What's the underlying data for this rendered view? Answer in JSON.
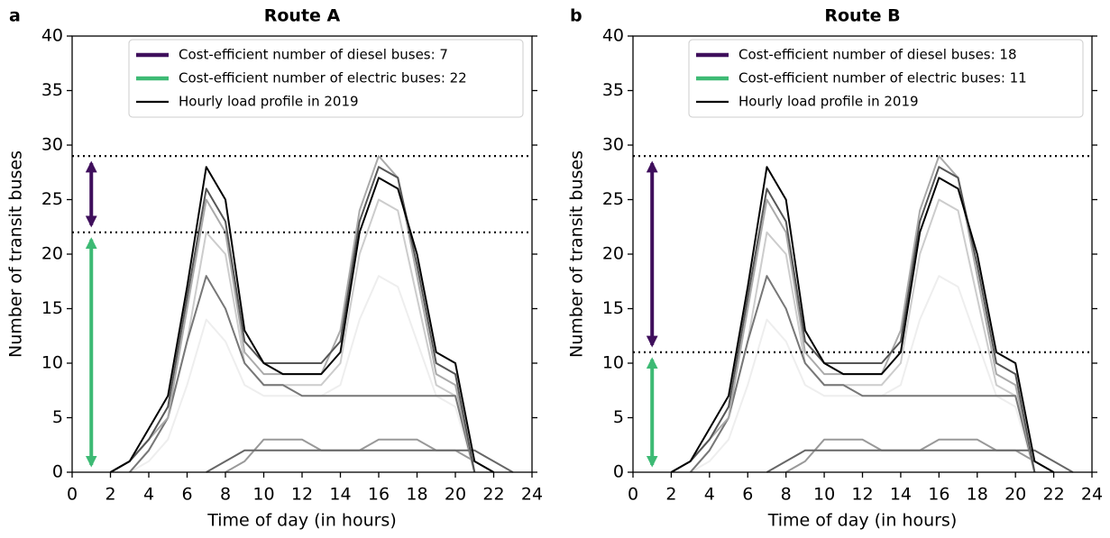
{
  "chart_data": [
    {
      "type": "line",
      "panel": "a",
      "title": "Route A",
      "x_label": "Time of day (in hours)",
      "y_label": "Number of transit buses",
      "xlim": [
        0,
        24
      ],
      "xticks": [
        0,
        2,
        4,
        6,
        8,
        10,
        12,
        14,
        16,
        18,
        20,
        22,
        24
      ],
      "ylim": [
        0,
        40
      ],
      "yticks": [
        0,
        5,
        10,
        15,
        20,
        25,
        30,
        35,
        40
      ],
      "diesel": {
        "name": "Cost-efficient number of diesel buses: 7",
        "color": "#3f0f5c",
        "range": [
          22,
          29
        ]
      },
      "electric": {
        "name": "Cost-efficient number of electric buses: 22",
        "color": "#3dba74",
        "range": [
          0,
          22
        ]
      },
      "load_profile_name": "Hourly load profile in 2019",
      "load_profile_color": "#000000",
      "x": [
        0,
        1,
        2,
        3,
        4,
        5,
        6,
        7,
        8,
        9,
        10,
        11,
        12,
        13,
        14,
        15,
        16,
        17,
        18,
        19,
        20,
        21,
        22,
        23
      ],
      "profiles": [
        {
          "color": "#eeeeee",
          "values": [
            null,
            null,
            null,
            0,
            1,
            3,
            8,
            14,
            12,
            8,
            7,
            7,
            7,
            7,
            8,
            14,
            18,
            17,
            12,
            7,
            6,
            0,
            null,
            null
          ]
        },
        {
          "color": "#cccccc",
          "values": [
            null,
            null,
            null,
            0,
            2,
            5,
            12,
            22,
            20,
            10,
            8,
            8,
            8,
            8,
            10,
            20,
            25,
            24,
            16,
            8,
            7,
            0,
            null,
            null
          ]
        },
        {
          "color": "#777777",
          "values": [
            null,
            null,
            null,
            0,
            2,
            5,
            12,
            18,
            15,
            10,
            8,
            8,
            7,
            7,
            7,
            7,
            7,
            7,
            7,
            7,
            7,
            0,
            null,
            null
          ]
        },
        {
          "color": "#999999",
          "values": [
            null,
            null,
            null,
            null,
            null,
            null,
            null,
            null,
            0,
            1,
            3,
            3,
            3,
            2,
            2,
            2,
            3,
            3,
            3,
            2,
            2,
            1,
            0,
            null
          ]
        },
        {
          "color": "#666666",
          "values": [
            null,
            null,
            null,
            null,
            null,
            null,
            null,
            0,
            1,
            2,
            2,
            2,
            2,
            2,
            2,
            2,
            2,
            2,
            2,
            2,
            2,
            2,
            1,
            0
          ]
        },
        {
          "color": "#aaaaaa",
          "values": [
            null,
            null,
            0,
            1,
            3,
            5,
            15,
            25,
            22,
            11,
            9,
            9,
            9,
            9,
            13,
            24,
            29,
            27,
            18,
            9,
            8,
            0,
            null,
            null
          ]
        },
        {
          "color": "#555555",
          "values": [
            null,
            null,
            0,
            1,
            3,
            6,
            16,
            26,
            23,
            12,
            10,
            10,
            10,
            10,
            12,
            23,
            28,
            27,
            19,
            10,
            9,
            0,
            null,
            null
          ]
        },
        {
          "color": "#000000",
          "values": [
            null,
            null,
            0,
            1,
            4,
            7,
            17,
            28,
            25,
            13,
            10,
            9,
            9,
            9,
            11,
            22,
            27,
            26,
            20,
            11,
            10,
            1,
            0,
            null
          ]
        }
      ]
    },
    {
      "type": "line",
      "panel": "b",
      "title": "Route B",
      "x_label": "Time of day (in hours)",
      "y_label": "Number of transit buses",
      "xlim": [
        0,
        24
      ],
      "xticks": [
        0,
        2,
        4,
        6,
        8,
        10,
        12,
        14,
        16,
        18,
        20,
        22,
        24
      ],
      "ylim": [
        0,
        40
      ],
      "yticks": [
        0,
        5,
        10,
        15,
        20,
        25,
        30,
        35,
        40
      ],
      "diesel": {
        "name": "Cost-efficient number of diesel buses: 18",
        "color": "#3f0f5c",
        "range": [
          11,
          29
        ]
      },
      "electric": {
        "name": "Cost-efficient number of electric buses: 11",
        "color": "#3dba74",
        "range": [
          0,
          11
        ]
      },
      "load_profile_name": "Hourly load profile in 2019",
      "load_profile_color": "#000000",
      "x": [
        0,
        1,
        2,
        3,
        4,
        5,
        6,
        7,
        8,
        9,
        10,
        11,
        12,
        13,
        14,
        15,
        16,
        17,
        18,
        19,
        20,
        21,
        22,
        23
      ],
      "profiles": [
        {
          "color": "#eeeeee",
          "values": [
            null,
            null,
            null,
            0,
            1,
            3,
            8,
            14,
            12,
            8,
            7,
            7,
            7,
            7,
            8,
            14,
            18,
            17,
            12,
            7,
            6,
            0,
            null,
            null
          ]
        },
        {
          "color": "#cccccc",
          "values": [
            null,
            null,
            null,
            0,
            2,
            5,
            12,
            22,
            20,
            10,
            8,
            8,
            8,
            8,
            10,
            20,
            25,
            24,
            16,
            8,
            7,
            0,
            null,
            null
          ]
        },
        {
          "color": "#777777",
          "values": [
            null,
            null,
            null,
            0,
            2,
            5,
            12,
            18,
            15,
            10,
            8,
            8,
            7,
            7,
            7,
            7,
            7,
            7,
            7,
            7,
            7,
            0,
            null,
            null
          ]
        },
        {
          "color": "#999999",
          "values": [
            null,
            null,
            null,
            null,
            null,
            null,
            null,
            null,
            0,
            1,
            3,
            3,
            3,
            2,
            2,
            2,
            3,
            3,
            3,
            2,
            2,
            1,
            0,
            null
          ]
        },
        {
          "color": "#666666",
          "values": [
            null,
            null,
            null,
            null,
            null,
            null,
            null,
            0,
            1,
            2,
            2,
            2,
            2,
            2,
            2,
            2,
            2,
            2,
            2,
            2,
            2,
            2,
            1,
            0
          ]
        },
        {
          "color": "#aaaaaa",
          "values": [
            null,
            null,
            0,
            1,
            3,
            5,
            15,
            25,
            22,
            11,
            9,
            9,
            9,
            9,
            13,
            24,
            29,
            27,
            18,
            9,
            8,
            0,
            null,
            null
          ]
        },
        {
          "color": "#555555",
          "values": [
            null,
            null,
            0,
            1,
            3,
            6,
            16,
            26,
            23,
            12,
            10,
            10,
            10,
            10,
            12,
            23,
            28,
            27,
            19,
            10,
            9,
            0,
            null,
            null
          ]
        },
        {
          "color": "#000000",
          "values": [
            null,
            null,
            0,
            1,
            4,
            7,
            17,
            28,
            25,
            13,
            10,
            9,
            9,
            9,
            11,
            22,
            27,
            26,
            20,
            11,
            10,
            1,
            0,
            null
          ]
        }
      ]
    }
  ]
}
